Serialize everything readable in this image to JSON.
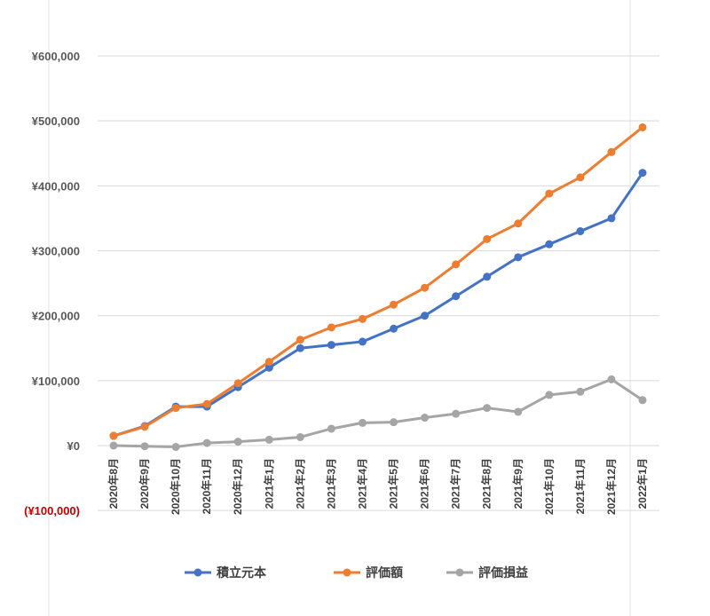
{
  "chart_data": {
    "type": "line",
    "title": "",
    "xlabel": "",
    "ylabel": "",
    "categories": [
      "2020年8月",
      "2020年9月",
      "2020年10月",
      "2020年11月",
      "2020年12月",
      "2021年1月",
      "2021年2月",
      "2021年3月",
      "2021年4月",
      "2021年5月",
      "2021年6月",
      "2021年7月",
      "2021年8月",
      "2021年9月",
      "2021年10月",
      "2021年11月",
      "2021年12月",
      "2022年1月"
    ],
    "ylim": [
      -100000,
      600000
    ],
    "yticks": [
      600000,
      500000,
      400000,
      300000,
      200000,
      100000,
      0,
      -100000
    ],
    "ytick_labels": [
      "¥600,000",
      "¥500,000",
      "¥400,000",
      "¥300,000",
      "¥200,000",
      "¥100,000",
      "¥0",
      "(¥100,000)"
    ],
    "grid": true,
    "legend_position": "bottom",
    "series": [
      {
        "name": "積立元本",
        "color": "#4472c4",
        "values": [
          15000,
          30000,
          60000,
          60000,
          90000,
          120000,
          150000,
          155000,
          160000,
          180000,
          200000,
          230000,
          260000,
          290000,
          310000,
          330000,
          350000,
          420000
        ]
      },
      {
        "name": "評価額",
        "color": "#ed7d31",
        "values": [
          15000,
          29000,
          58000,
          64000,
          96000,
          129000,
          163000,
          182000,
          195000,
          217000,
          243000,
          279000,
          318000,
          342000,
          388000,
          413000,
          452000,
          490000
        ]
      },
      {
        "name": "評価損益",
        "color": "#a5a5a5",
        "values": [
          0,
          -1000,
          -2000,
          4000,
          6000,
          9000,
          13000,
          26000,
          35000,
          36000,
          43000,
          49000,
          58000,
          52000,
          78000,
          83000,
          102000,
          70000
        ]
      }
    ]
  }
}
